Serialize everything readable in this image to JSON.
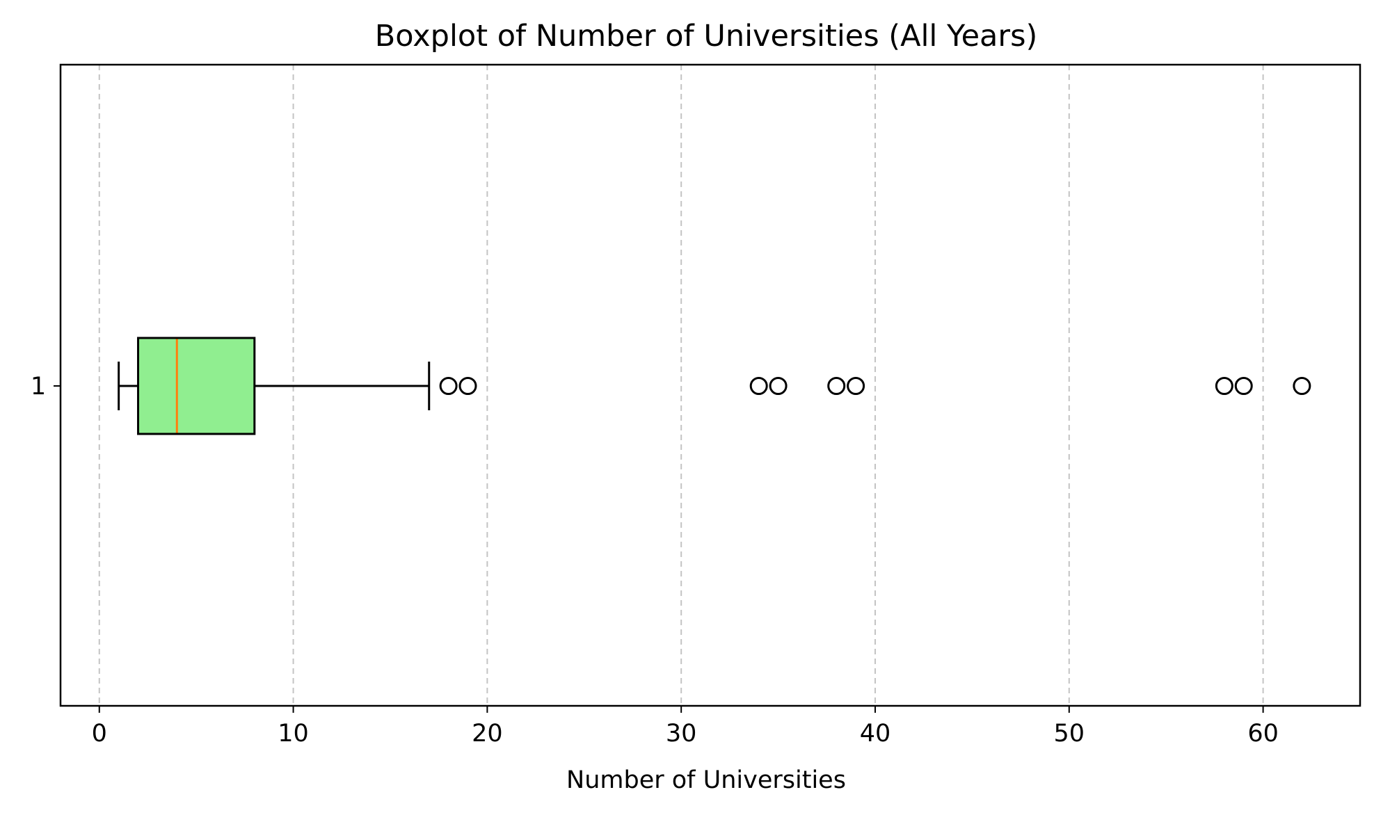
{
  "chart_data": {
    "type": "boxplot",
    "orientation": "horizontal",
    "title": "Boxplot of Number of Universities (All Years)",
    "xlabel": "Number of Universities",
    "ylabel": "",
    "xlim": [
      -2,
      65
    ],
    "x_ticks": [
      0,
      10,
      20,
      30,
      40,
      50,
      60
    ],
    "x_tick_labels": [
      "0",
      "10",
      "20",
      "30",
      "40",
      "50",
      "60"
    ],
    "y_tick_labels": [
      "1"
    ],
    "grid": {
      "axis": "x",
      "style": "dashed"
    },
    "boxes": [
      {
        "label": "1",
        "whisker_low": 1,
        "q1": 2,
        "median": 4,
        "q3": 8,
        "whisker_high": 17,
        "outliers": [
          18,
          19,
          34,
          35,
          38,
          39,
          58,
          59,
          62
        ]
      }
    ],
    "colors": {
      "box_fill": "#90ee90",
      "median_line": "#ff7f0e",
      "box_edge": "#000000",
      "grid": "#b0b0b0"
    }
  }
}
